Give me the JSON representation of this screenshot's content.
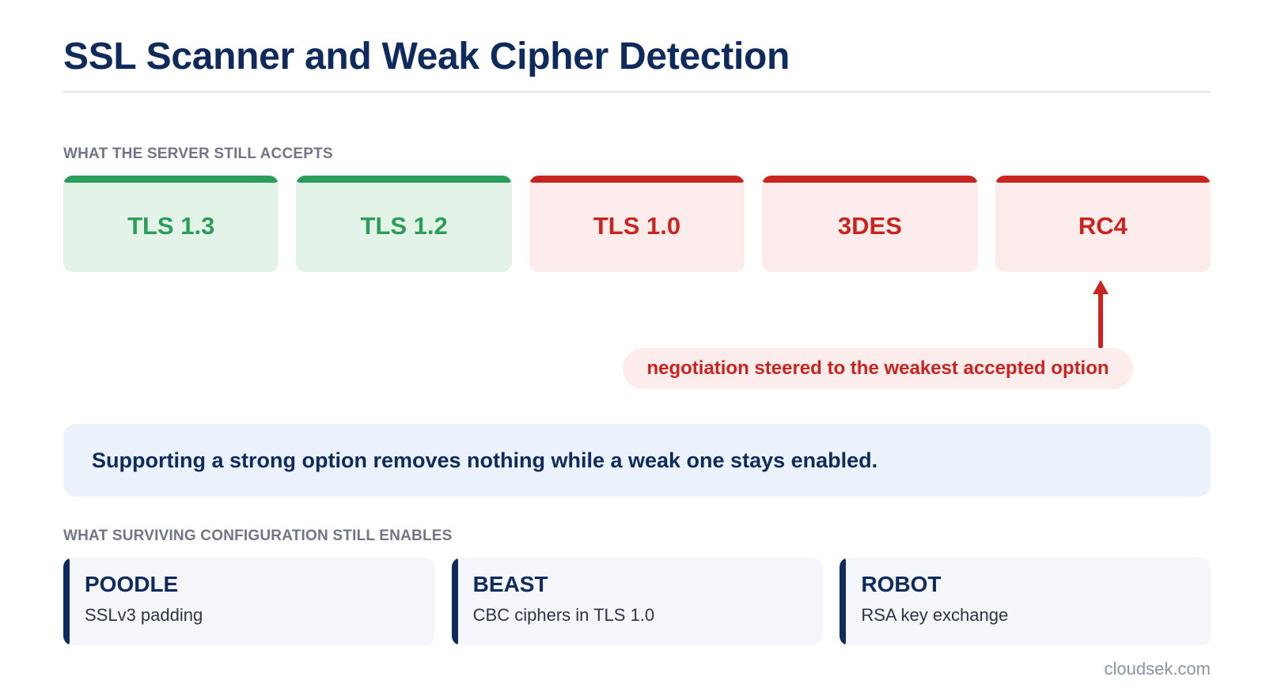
{
  "title": "SSL Scanner and Weak Cipher Detection",
  "accepts": {
    "label": "WHAT THE SERVER STILL ACCEPTS",
    "items": [
      {
        "label": "TLS 1.3",
        "status": "strong"
      },
      {
        "label": "TLS 1.2",
        "status": "strong"
      },
      {
        "label": "TLS 1.0",
        "status": "weak"
      },
      {
        "label": "3DES",
        "status": "weak"
      },
      {
        "label": "RC4",
        "status": "weak"
      }
    ]
  },
  "callout": "negotiation steered to the weakest accepted option",
  "note": "Supporting a strong option removes nothing while a weak one stays enabled.",
  "enables": {
    "label": "WHAT SURVIVING CONFIGURATION STILL ENABLES",
    "items": [
      {
        "name": "POODLE",
        "desc": "SSLv3 padding"
      },
      {
        "name": "BEAST",
        "desc": "CBC ciphers in TLS 1.0"
      },
      {
        "name": "ROBOT",
        "desc": "RSA key exchange"
      }
    ]
  },
  "footer": "cloudsek.com",
  "colors": {
    "strong": "#2a9d5a",
    "weak": "#c9241f",
    "navy": "#0f2a5c"
  },
  "icons": {
    "arrow": "arrow-up-icon"
  }
}
